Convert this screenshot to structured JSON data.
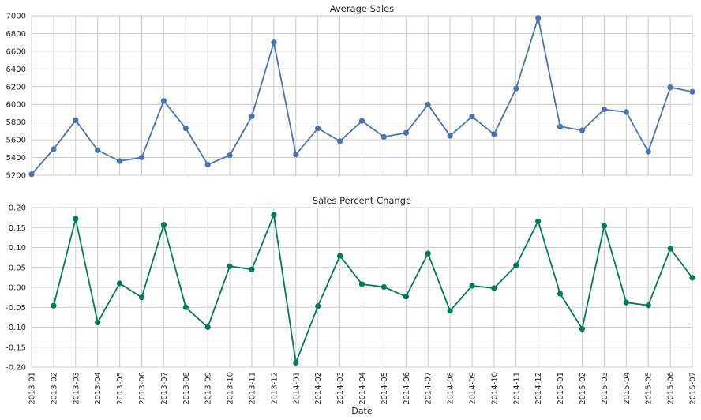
{
  "chart_data": [
    {
      "type": "line",
      "title": "Average Sales",
      "xlabel": "",
      "ylabel": "",
      "ylim": [
        5200,
        7000
      ],
      "yticks": [
        5200,
        5400,
        5600,
        5800,
        6000,
        6200,
        6400,
        6600,
        6800,
        7000
      ],
      "grid": true,
      "color": "#4c72b0",
      "categories": [
        "2013-01",
        "2013-02",
        "2013-03",
        "2013-04",
        "2013-05",
        "2013-06",
        "2013-07",
        "2013-08",
        "2013-09",
        "2013-10",
        "2013-11",
        "2013-12",
        "2014-01",
        "2014-02",
        "2014-03",
        "2014-04",
        "2014-05",
        "2014-06",
        "2014-07",
        "2014-08",
        "2014-09",
        "2014-10",
        "2014-11",
        "2014-12",
        "2015-01",
        "2015-02",
        "2015-03",
        "2015-04",
        "2015-05",
        "2015-06",
        "2015-07"
      ],
      "values": [
        5211,
        5494,
        5821,
        5483,
        5360,
        5401,
        6040,
        5730,
        5320,
        5426,
        5866,
        6700,
        5435,
        5730,
        5584,
        5813,
        5633,
        5678,
        5998,
        5645,
        5862,
        5663,
        6178,
        6976,
        5750,
        5707,
        5943,
        5914,
        5466,
        6192,
        6142
      ]
    },
    {
      "type": "line",
      "title": "Sales Percent Change",
      "xlabel": "Date",
      "ylabel": "",
      "ylim": [
        -0.2,
        0.2
      ],
      "yticks": [
        -0.2,
        -0.15,
        -0.1,
        -0.05,
        0.0,
        0.05,
        0.1,
        0.15,
        0.2
      ],
      "grid": true,
      "color": "#007a5a",
      "categories": [
        "2013-01",
        "2013-02",
        "2013-03",
        "2013-04",
        "2013-05",
        "2013-06",
        "2013-07",
        "2013-08",
        "2013-09",
        "2013-10",
        "2013-11",
        "2013-12",
        "2014-01",
        "2014-02",
        "2014-03",
        "2014-04",
        "2014-05",
        "2014-06",
        "2014-07",
        "2014-08",
        "2014-09",
        "2014-10",
        "2014-11",
        "2014-12",
        "2015-01",
        "2015-02",
        "2015-03",
        "2015-04",
        "2015-05",
        "2015-06",
        "2015-07"
      ],
      "values": [
        null,
        -0.046,
        0.172,
        -0.088,
        0.01,
        -0.025,
        0.157,
        -0.05,
        -0.1,
        0.053,
        0.045,
        0.182,
        -0.189,
        -0.047,
        0.079,
        0.008,
        0.001,
        -0.023,
        0.085,
        -0.059,
        0.004,
        -0.002,
        0.055,
        0.166,
        -0.016,
        -0.104,
        0.154,
        -0.038,
        -0.045,
        0.097,
        0.024
      ]
    }
  ]
}
